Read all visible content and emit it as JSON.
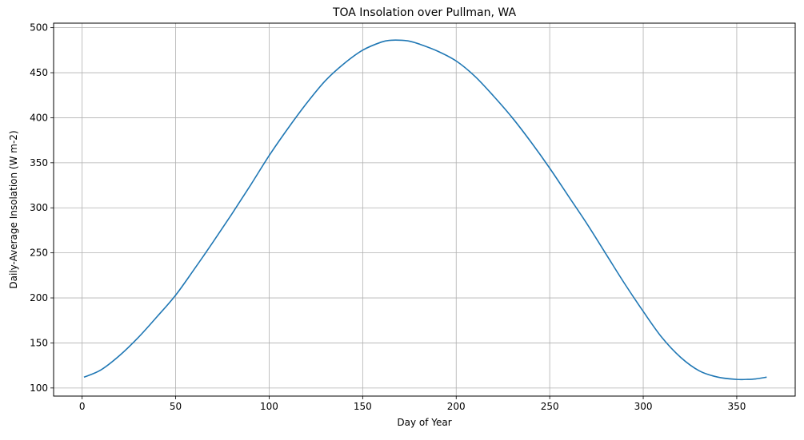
{
  "chart_data": {
    "type": "line",
    "title": "TOA Insolation over Pullman, WA",
    "xlabel": "Day of Year",
    "ylabel": "Daily-Average Insolation (W m-2)",
    "xlim": [
      -15.25,
      381.25
    ],
    "ylim": [
      91,
      505
    ],
    "xticks": [
      0,
      50,
      100,
      150,
      200,
      250,
      300,
      350
    ],
    "yticks": [
      100,
      150,
      200,
      250,
      300,
      350,
      400,
      450,
      500
    ],
    "grid": true,
    "line_color": "#1f77b4",
    "series": [
      {
        "x": [
          1,
          10,
          20,
          30,
          40,
          50,
          60,
          70,
          80,
          90,
          100,
          110,
          120,
          130,
          140,
          150,
          160,
          165,
          171,
          175,
          180,
          190,
          200,
          210,
          220,
          230,
          240,
          250,
          260,
          270,
          280,
          290,
          300,
          310,
          320,
          330,
          340,
          350,
          355,
          360,
          366
        ],
        "y": [
          112,
          120,
          136,
          156,
          179,
          203,
          232,
          262,
          293,
          325,
          358,
          388,
          416,
          441,
          460,
          475,
          484,
          486,
          486,
          485,
          482,
          474,
          463,
          446,
          424,
          400,
          373,
          344,
          313,
          282,
          249,
          216,
          185,
          156,
          134,
          119,
          112,
          109.5,
          109.5,
          110,
          112
        ]
      }
    ]
  }
}
